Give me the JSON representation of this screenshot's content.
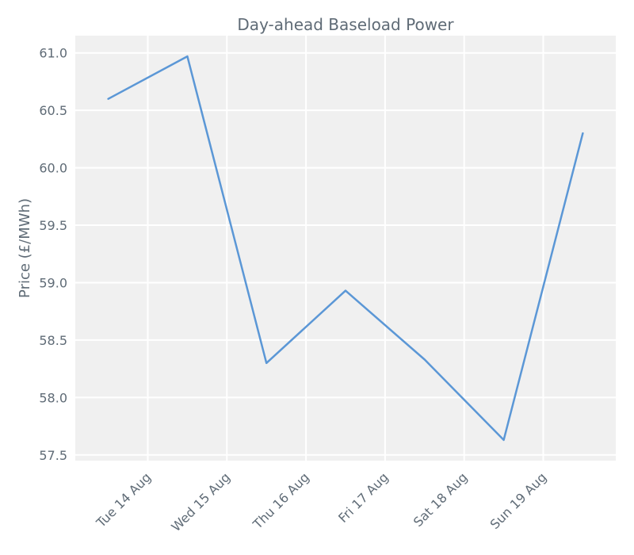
{
  "chart_data": {
    "type": "line",
    "title": "Day-ahead Baseload Power",
    "xlabel": "",
    "ylabel": "Price (£/MWh)",
    "x": [
      "2018-08-13 12:00",
      "2018-08-14 12:00",
      "2018-08-15 12:00",
      "2018-08-16 12:00",
      "2018-08-17 12:00",
      "2018-08-18 12:00",
      "2018-08-19 12:00"
    ],
    "x_ticks": [
      {
        "date": "2018-08-14",
        "label": "Tue 14 Aug"
      },
      {
        "date": "2018-08-15",
        "label": "Wed 15 Aug"
      },
      {
        "date": "2018-08-16",
        "label": "Thu 16 Aug"
      },
      {
        "date": "2018-08-17",
        "label": "Fri 17 Aug"
      },
      {
        "date": "2018-08-18",
        "label": "Sat 18 Aug"
      },
      {
        "date": "2018-08-19",
        "label": "Sun 19 Aug"
      }
    ],
    "xlim": [
      "2018-08-13 02:00",
      "2018-08-19 22:00"
    ],
    "ylim": [
      57.45,
      61.15
    ],
    "y_ticks": [
      "57.5",
      "58.0",
      "58.5",
      "59.0",
      "59.5",
      "60.0",
      "60.5",
      "61.0"
    ],
    "series": [
      {
        "values": [
          60.6,
          60.97,
          58.3,
          58.93,
          58.33,
          57.63,
          60.3
        ]
      }
    ],
    "grid": true,
    "colors": {
      "line": "#5b97d6",
      "background": "#f0f0f0",
      "grid": "#ffffff",
      "text": "#5f6b76"
    }
  }
}
